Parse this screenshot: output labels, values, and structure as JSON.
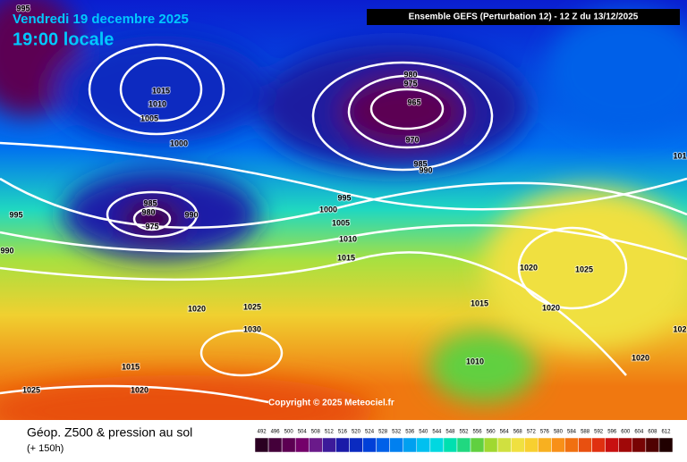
{
  "header": {
    "date": "Vendredi 19 decembre 2025",
    "time": "19:00 locale",
    "model": "Ensemble GEFS  (Perturbation 12)  -  12 Z du 13/12/2025"
  },
  "copyright": "Copyright © 2025 Meteociel.fr",
  "footer": {
    "title": "Géop. Z500 & pression au sol",
    "lead": "(+ 150h)"
  },
  "isobar_labels": [
    "995",
    "1015",
    "1010",
    "1005",
    "1000",
    "980",
    "975",
    "965",
    "970",
    "985",
    "990",
    "995",
    "1000",
    "1005",
    "1010",
    "1015",
    "985",
    "980",
    "975",
    "990",
    "995",
    "990",
    "1020",
    "1025",
    "1030",
    "1015",
    "1020",
    "1025",
    "1020",
    "1025",
    "1015",
    "1020",
    "1010",
    "1020",
    "102",
    "101"
  ],
  "legend": {
    "values": [
      492,
      496,
      500,
      504,
      508,
      512,
      516,
      520,
      524,
      528,
      532,
      536,
      540,
      544,
      548,
      552,
      556,
      560,
      564,
      568,
      572,
      576,
      580,
      584,
      588,
      592,
      596,
      600,
      604,
      608,
      612
    ],
    "colors": [
      "#2b0022",
      "#44003a",
      "#5c0052",
      "#74006a",
      "#6a1a8a",
      "#3c1a9a",
      "#1a1aa8",
      "#0a2ac0",
      "#0040d8",
      "#0060e8",
      "#0080f0",
      "#00a0f0",
      "#00c0f0",
      "#00d8e0",
      "#00e0b0",
      "#20d880",
      "#60d040",
      "#a0d830",
      "#d0e040",
      "#f0e040",
      "#f8d030",
      "#f8b020",
      "#f89018",
      "#f07010",
      "#e85010",
      "#e03010",
      "#c81010",
      "#a00808",
      "#780404",
      "#500202",
      "#200000"
    ]
  }
}
